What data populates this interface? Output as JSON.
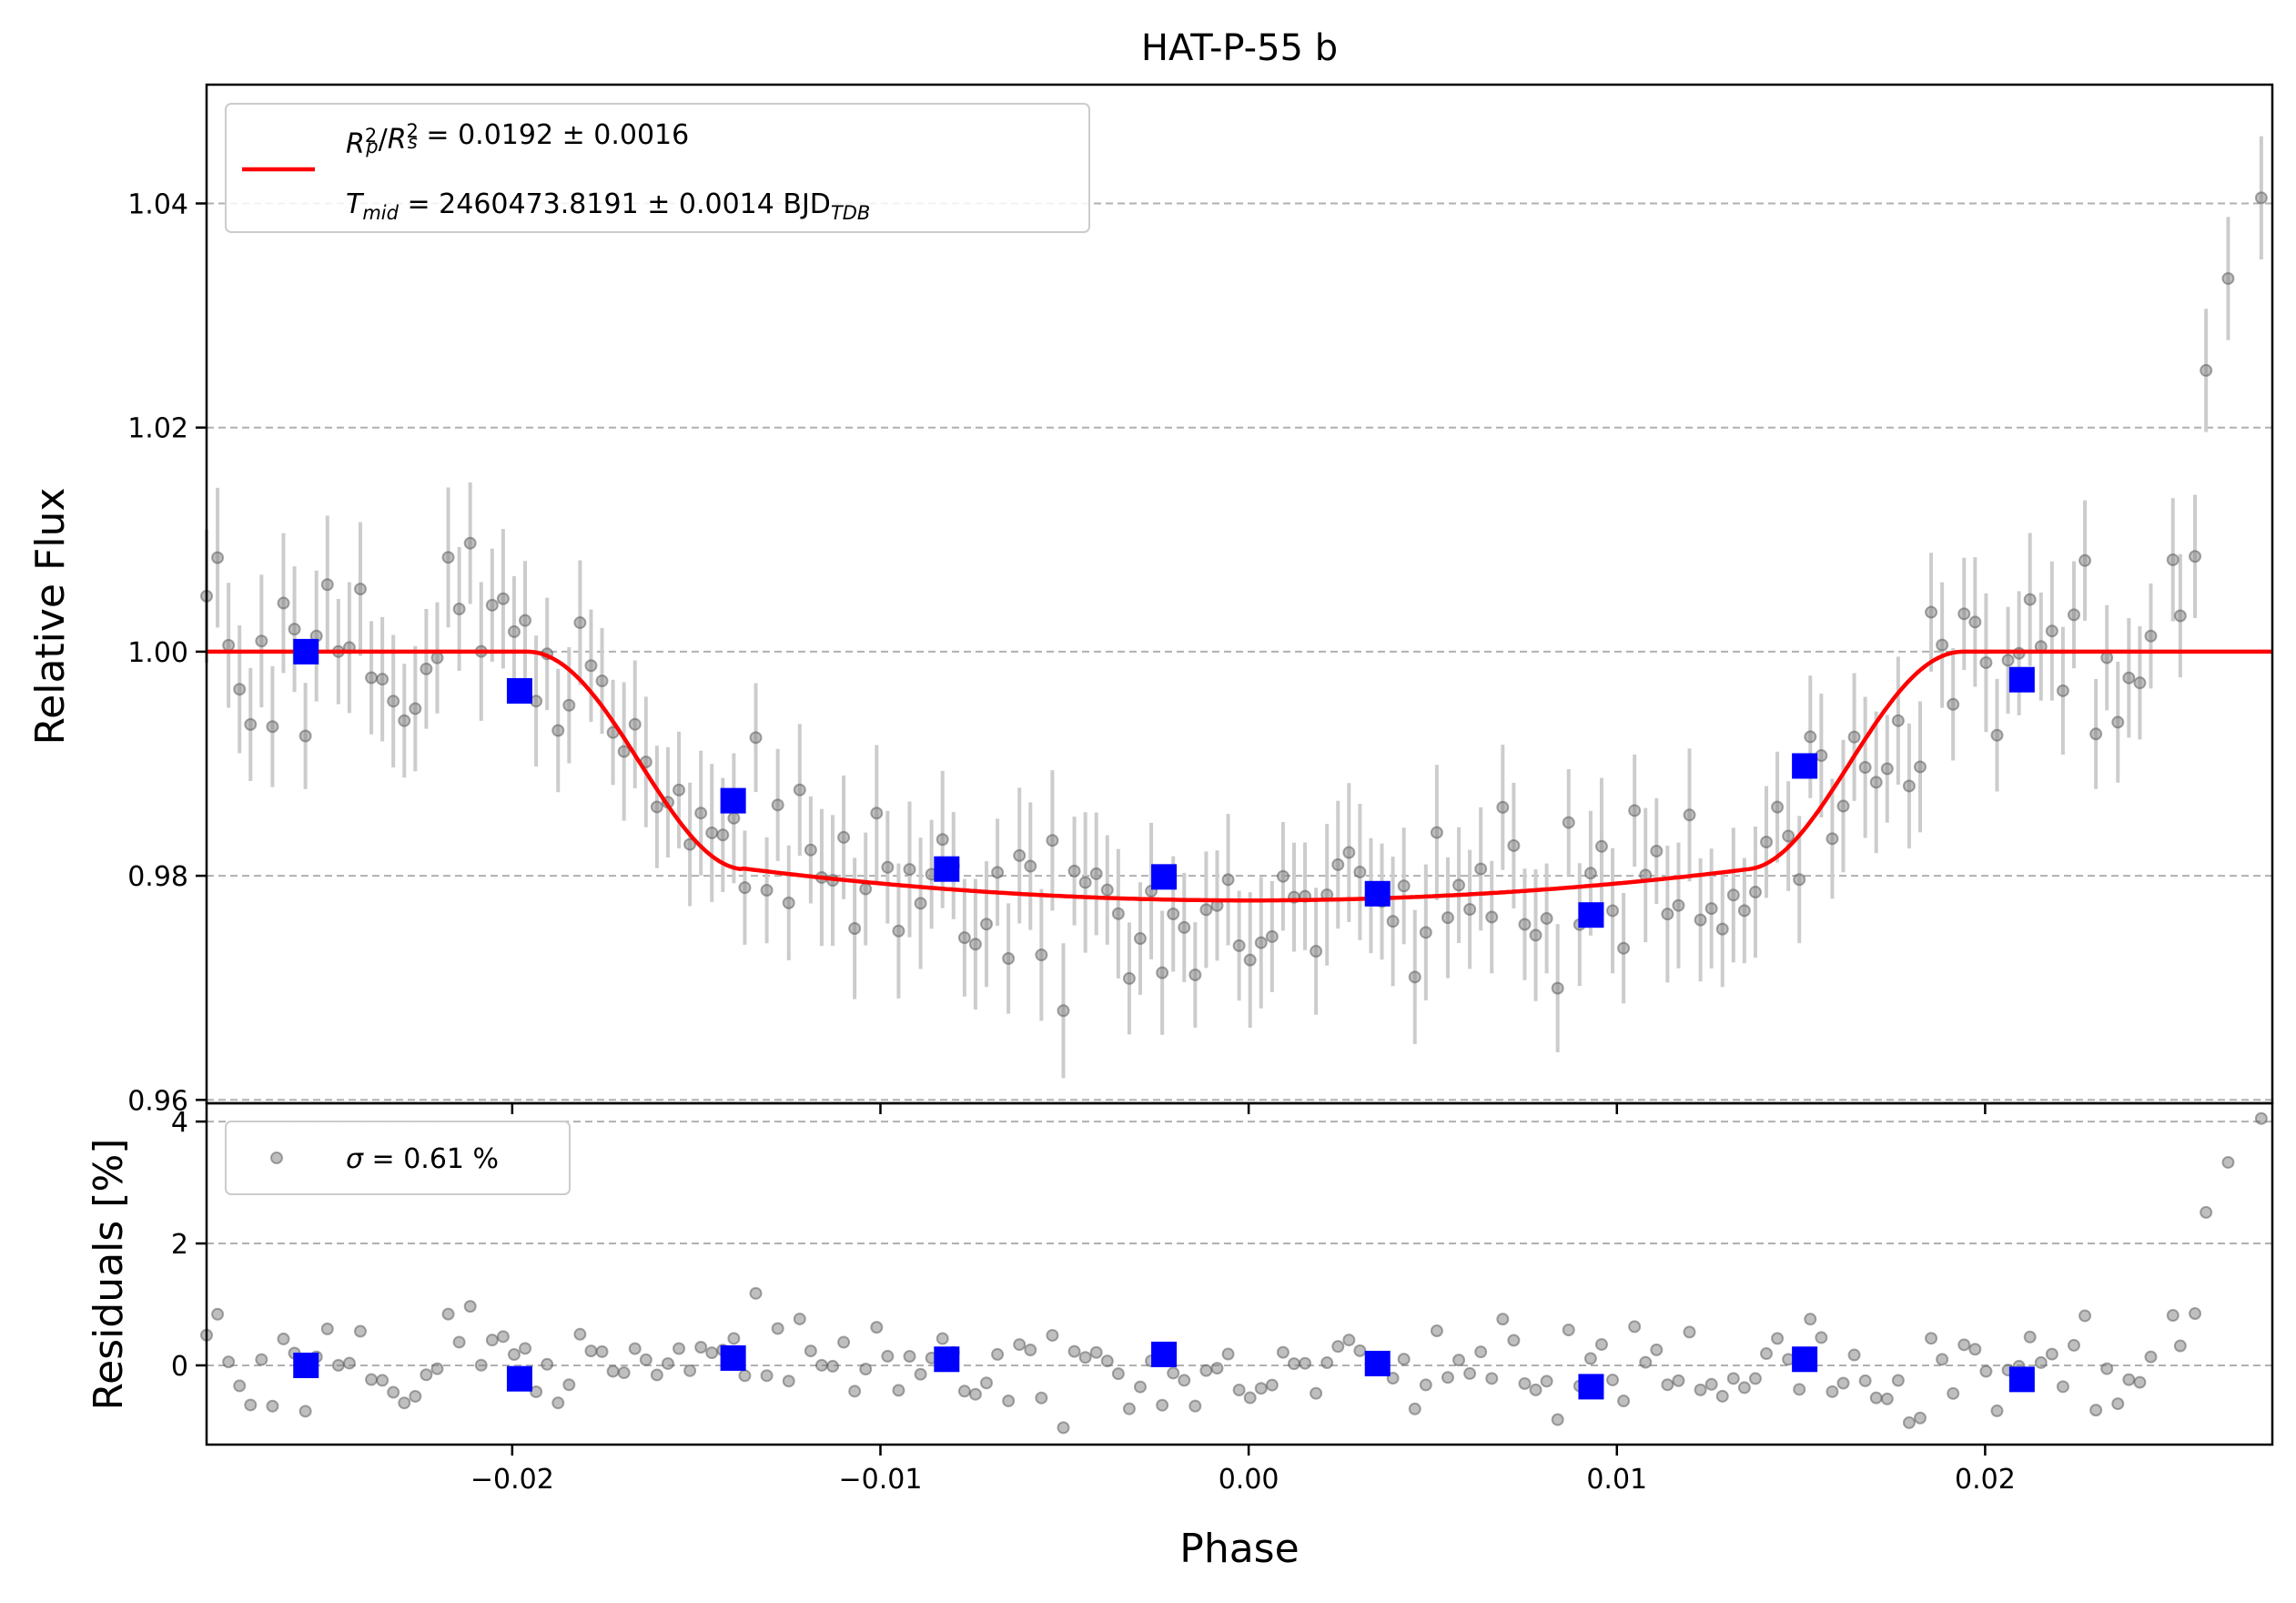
{
  "chart_data": [
    {
      "type": "scatter",
      "title": "HAT-P-55 b",
      "xlabel": "",
      "ylabel": "Relative Flux",
      "xlim": [
        -0.0283,
        0.0278
      ],
      "ylim": [
        0.9597,
        1.0506
      ],
      "yticks": [
        "0.96",
        "0.98",
        "1.00",
        "1.02",
        "1.04"
      ],
      "grid": "horizontal dashed",
      "legend_position": "top-left",
      "legend": {
        "line1": {
          "R": "R",
          "p_sub": "p",
          "sq": "2",
          "slash": "/",
          "s_sub": "s",
          "value": " = 0.0192 ± 0.0016"
        },
        "line2": {
          "T": "T",
          "mid_sub": "mid",
          "value": " = 2460473.8191 ± 0.0014 BJD",
          "tdb_sub": "TDB"
        }
      },
      "model_params": {
        "t1": -0.0196,
        "t2": -0.0138,
        "t3": 0.0136,
        "t4": 0.0194,
        "depth": 0.0222,
        "limb_curvature": 0.0028,
        "center": 0.0
      },
      "binned_points": {
        "x": [
          -0.0256,
          -0.0198,
          -0.014,
          -0.0082,
          -0.0023,
          0.0035,
          0.0093,
          0.0151,
          0.021
        ],
        "y": [
          1.0,
          0.9965,
          0.9867,
          0.9806,
          0.9799,
          0.9784,
          0.9765,
          0.9898,
          0.9975
        ]
      },
      "series": [
        {
          "name": "",
          "x_start": -0.0283,
          "x_end": 0.0245,
          "count": 178,
          "error": 0.0055
        },
        {
          "name": "",
          "x": [
            0.0251,
            0.0253,
            0.0257,
            0.026,
            0.0266,
            0.0275
          ],
          "y": [
            1.0082,
            1.0032,
            1.0085,
            1.0251,
            1.0333,
            1.0405
          ]
        }
      ]
    },
    {
      "type": "scatter",
      "title": "",
      "xlabel": "Phase",
      "ylabel": "Residuals [%]",
      "xlim": [
        -0.0283,
        0.0278
      ],
      "ylim": [
        -1.3,
        4.3
      ],
      "yticks": [
        "0",
        "2",
        "4"
      ],
      "xticks": [
        "−0.02",
        "−0.01",
        "0.00",
        "0.01",
        "0.02"
      ],
      "xtick_values": [
        -0.02,
        -0.01,
        0.0,
        0.01,
        0.02
      ],
      "grid": "horizontal dashed",
      "legend_position": "top-left",
      "legend": {
        "sigma": "σ",
        "value": " = 0.61 %"
      },
      "binned_points": {
        "x": [
          -0.0256,
          -0.0198,
          -0.014,
          -0.0082,
          -0.0023,
          0.0035,
          0.0093,
          0.0151,
          0.021
        ],
        "y": [
          0.0,
          -0.22,
          0.12,
          0.1,
          0.18,
          0.03,
          -0.35,
          0.1,
          -0.23
        ]
      },
      "series": [
        {
          "name": "",
          "sigma": 0.61
        }
      ]
    }
  ],
  "colors": {
    "model": "#ff0000",
    "binned": "#0000ff",
    "points": "#808080",
    "errorbars": "#cccccc",
    "grid": "#b0b0b0"
  }
}
